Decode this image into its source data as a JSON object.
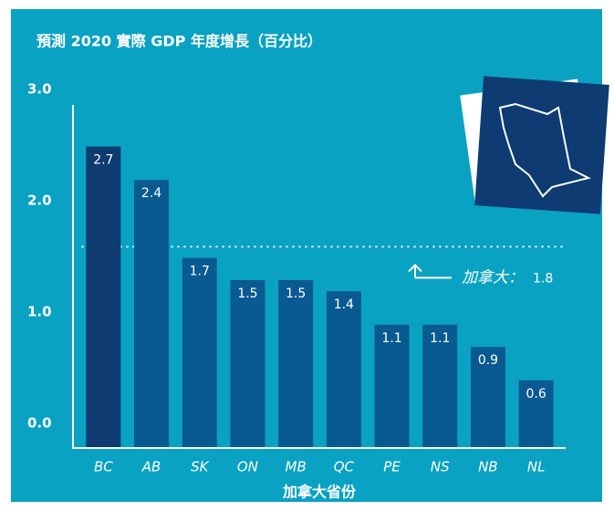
{
  "chart_data": {
    "type": "bar",
    "title": "預測 2020 實際 GDP 年度增長（百分比）",
    "x_label": "加拿大省份",
    "categories": [
      "BC",
      "AB",
      "SK",
      "ON",
      "MB",
      "QC",
      "PE",
      "NS",
      "NB",
      "NL"
    ],
    "values": [
      2.7,
      2.4,
      1.7,
      1.5,
      1.5,
      1.4,
      1.1,
      1.1,
      0.9,
      0.6
    ],
    "colors": [
      "#0d3b72",
      "#0a5a92",
      "#0a5a92",
      "#0a5a92",
      "#0a5a92",
      "#0a5a92",
      "#0a5a92",
      "#0a5a92",
      "#0a5a92",
      "#0a5a92"
    ],
    "ylim": [
      0,
      3.0
    ],
    "yticks": [
      {
        "value": 0,
        "label": "0.0"
      },
      {
        "value": 1,
        "label": "1.0"
      },
      {
        "value": 2,
        "label": "2.0"
      },
      {
        "value": 3,
        "label": "3.0"
      }
    ],
    "reference_line": {
      "label": "加拿大：",
      "value": 1.8
    },
    "grid": false
  }
}
